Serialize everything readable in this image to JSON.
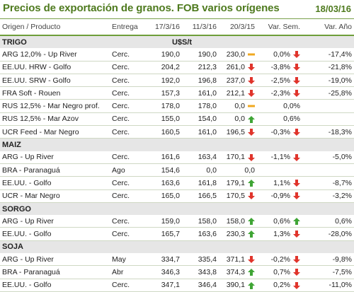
{
  "header": {
    "title": "Precios de exportación de granos. FOB varios orígenes",
    "date": "18/03/16"
  },
  "columns": [
    "Origen / Producto",
    "Entrega",
    "17/3/16",
    "11/3/16",
    "20/3/15",
    "Var. Sem.",
    "Var. Año"
  ],
  "unit_label": "U$S/t",
  "colors": {
    "up": "#3fa535",
    "down": "#e0342b",
    "flat": "#f0a820",
    "accent": "#4e7a1e"
  },
  "sections": [
    {
      "name": "TRIGO",
      "rows": [
        {
          "product": "ARG 12,0% - Up River",
          "delivery": "Cerc.",
          "p1": "190,0",
          "p2": "190,0",
          "p3": "230,0",
          "ind_week": "flat",
          "var_week": "0,0%",
          "ind_year": "down",
          "var_year": "-17,4%"
        },
        {
          "product": "EE.UU. HRW - Golfo",
          "delivery": "Cerc.",
          "p1": "204,2",
          "p2": "212,3",
          "p3": "261,0",
          "ind_week": "down",
          "var_week": "-3,8%",
          "ind_year": "down",
          "var_year": "-21,8%"
        },
        {
          "product": "EE.UU. SRW - Golfo",
          "delivery": "Cerc.",
          "p1": "192,0",
          "p2": "196,8",
          "p3": "237,0",
          "ind_week": "down",
          "var_week": "-2,5%",
          "ind_year": "down",
          "var_year": "-19,0%"
        },
        {
          "product": "FRA Soft - Rouen",
          "delivery": "Cerc.",
          "p1": "157,3",
          "p2": "161,0",
          "p3": "212,1",
          "ind_week": "down",
          "var_week": "-2,3%",
          "ind_year": "down",
          "var_year": "-25,8%"
        },
        {
          "product": "RUS 12,5% - Mar Negro prof.",
          "delivery": "Cerc.",
          "p1": "178,0",
          "p2": "178,0",
          "p3": "0,0",
          "ind_week": "flat",
          "var_week": "0,0%",
          "ind_year": "",
          "var_year": ""
        },
        {
          "product": "RUS 12,5% - Mar Azov",
          "delivery": "Cerc.",
          "p1": "155,0",
          "p2": "154,0",
          "p3": "0,0",
          "ind_week": "up",
          "var_week": "0,6%",
          "ind_year": "",
          "var_year": ""
        },
        {
          "product": "UCR Feed - Mar Negro",
          "delivery": "Cerc.",
          "p1": "160,5",
          "p2": "161,0",
          "p3": "196,5",
          "ind_week": "down",
          "var_week": "-0,3%",
          "ind_year": "down",
          "var_year": "-18,3%"
        }
      ]
    },
    {
      "name": "MAIZ",
      "rows": [
        {
          "product": "ARG - Up River",
          "delivery": "Cerc.",
          "p1": "161,6",
          "p2": "163,4",
          "p3": "170,1",
          "ind_week": "down",
          "var_week": "-1,1%",
          "ind_year": "down",
          "var_year": "-5,0%"
        },
        {
          "product": "BRA - Paranaguá",
          "delivery": "Ago",
          "p1": "154,6",
          "p2": "0,0",
          "p3": "0,0",
          "ind_week": "",
          "var_week": "",
          "ind_year": "",
          "var_year": ""
        },
        {
          "product": "EE.UU. - Golfo",
          "delivery": "Cerc.",
          "p1": "163,6",
          "p2": "161,8",
          "p3": "179,1",
          "ind_week": "up",
          "var_week": "1,1%",
          "ind_year": "down",
          "var_year": "-8,7%"
        },
        {
          "product": "UCR - Mar Negro",
          "delivery": "Cerc.",
          "p1": "165,0",
          "p2": "166,5",
          "p3": "170,5",
          "ind_week": "down",
          "var_week": "-0,9%",
          "ind_year": "down",
          "var_year": "-3,2%"
        }
      ]
    },
    {
      "name": "SORGO",
      "rows": [
        {
          "product": "ARG - Up River",
          "delivery": "Cerc.",
          "p1": "159,0",
          "p2": "158,0",
          "p3": "158,0",
          "ind_week": "up",
          "var_week": "0,6%",
          "ind_year": "up",
          "var_year": "0,6%"
        },
        {
          "product": "EE.UU. - Golfo",
          "delivery": "Cerc.",
          "p1": "165,7",
          "p2": "163,6",
          "p3": "230,3",
          "ind_week": "up",
          "var_week": "1,3%",
          "ind_year": "down",
          "var_year": "-28,0%"
        }
      ]
    },
    {
      "name": "SOJA",
      "rows": [
        {
          "product": "ARG - Up River",
          "delivery": "May",
          "p1": "334,7",
          "p2": "335,4",
          "p3": "371,1",
          "ind_week": "down",
          "var_week": "-0,2%",
          "ind_year": "down",
          "var_year": "-9,8%"
        },
        {
          "product": "BRA - Paranaguá",
          "delivery": "Abr",
          "p1": "346,3",
          "p2": "343,8",
          "p3": "374,3",
          "ind_week": "up",
          "var_week": "0,7%",
          "ind_year": "down",
          "var_year": "-7,5%"
        },
        {
          "product": "EE.UU. - Golfo",
          "delivery": "Cerc.",
          "p1": "347,1",
          "p2": "346,4",
          "p3": "390,1",
          "ind_week": "up",
          "var_week": "0,2%",
          "ind_year": "down",
          "var_year": "-11,0%"
        }
      ]
    }
  ]
}
